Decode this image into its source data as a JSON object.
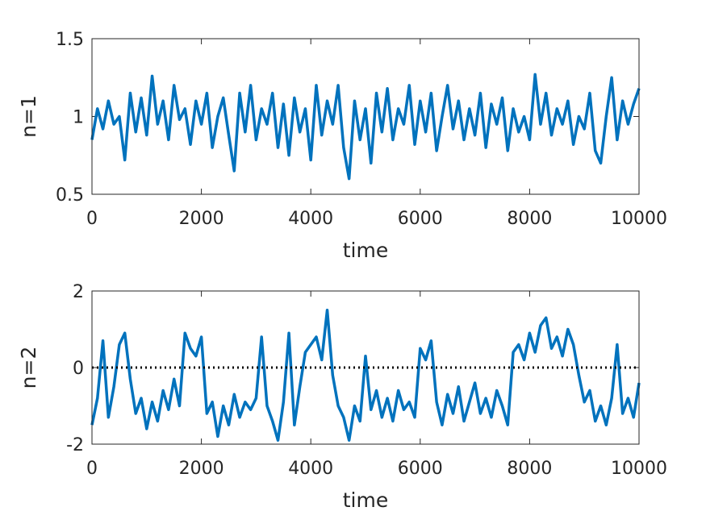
{
  "chart_data": [
    {
      "type": "line",
      "ylabel": "n=1",
      "xlabel": "time",
      "x": [
        0,
        100,
        200,
        300,
        400,
        500,
        600,
        700,
        800,
        900,
        1000,
        1100,
        1200,
        1300,
        1400,
        1500,
        1600,
        1700,
        1800,
        1900,
        2000,
        2100,
        2200,
        2300,
        2400,
        2500,
        2600,
        2700,
        2800,
        2900,
        3000,
        3100,
        3200,
        3300,
        3400,
        3500,
        3600,
        3700,
        3800,
        3900,
        4000,
        4100,
        4200,
        4300,
        4400,
        4500,
        4600,
        4700,
        4800,
        4900,
        5000,
        5100,
        5200,
        5300,
        5400,
        5500,
        5600,
        5700,
        5800,
        5900,
        6000,
        6100,
        6200,
        6300,
        6400,
        6500,
        6600,
        6700,
        6800,
        6900,
        7000,
        7100,
        7200,
        7300,
        7400,
        7500,
        7600,
        7700,
        7800,
        7900,
        8000,
        8100,
        8200,
        8300,
        8400,
        8500,
        8600,
        8700,
        8800,
        8900,
        9000,
        9100,
        9200,
        9300,
        9400,
        9500,
        9600,
        9700,
        9800,
        9900,
        10000
      ],
      "series": [
        {
          "color": "#0072bd",
          "values": [
            0.85,
            1.05,
            0.92,
            1.1,
            0.95,
            1.0,
            0.72,
            1.15,
            0.9,
            1.12,
            0.88,
            1.26,
            0.95,
            1.1,
            0.85,
            1.2,
            0.98,
            1.05,
            0.82,
            1.1,
            0.95,
            1.15,
            0.8,
            1.0,
            1.12,
            0.88,
            0.65,
            1.15,
            0.9,
            1.2,
            0.85,
            1.05,
            0.95,
            1.15,
            0.8,
            1.08,
            0.75,
            1.12,
            0.9,
            1.05,
            0.72,
            1.2,
            0.88,
            1.1,
            0.95,
            1.2,
            0.8,
            0.6,
            1.1,
            0.85,
            1.05,
            0.7,
            1.15,
            0.9,
            1.18,
            0.85,
            1.05,
            0.95,
            1.2,
            0.82,
            1.1,
            0.9,
            1.15,
            0.78,
            1.0,
            1.2,
            0.92,
            1.1,
            0.85,
            1.05,
            0.88,
            1.15,
            0.8,
            1.08,
            0.95,
            1.12,
            0.78,
            1.05,
            0.9,
            1.0,
            0.85,
            1.27,
            0.95,
            1.15,
            0.88,
            1.05,
            0.95,
            1.1,
            0.82,
            1.0,
            0.92,
            1.15,
            0.78,
            0.7,
            1.0,
            1.25,
            0.85,
            1.1,
            0.95,
            1.08,
            1.18
          ]
        }
      ],
      "xlim": [
        0,
        10000
      ],
      "xticks": [
        0,
        2000,
        4000,
        6000,
        8000,
        10000
      ],
      "ylim": [
        0.5,
        1.5
      ],
      "yticks": [
        0.5,
        1,
        1.5
      ]
    },
    {
      "type": "line",
      "ylabel": "n=2",
      "xlabel": "time",
      "x": [
        0,
        100,
        200,
        300,
        400,
        500,
        600,
        700,
        800,
        900,
        1000,
        1100,
        1200,
        1300,
        1400,
        1500,
        1600,
        1700,
        1800,
        1900,
        2000,
        2100,
        2200,
        2300,
        2400,
        2500,
        2600,
        2700,
        2800,
        2900,
        3000,
        3100,
        3200,
        3300,
        3400,
        3500,
        3600,
        3700,
        3800,
        3900,
        4000,
        4100,
        4200,
        4300,
        4400,
        4500,
        4600,
        4700,
        4800,
        4900,
        5000,
        5100,
        5200,
        5300,
        5400,
        5500,
        5600,
        5700,
        5800,
        5900,
        6000,
        6100,
        6200,
        6300,
        6400,
        6500,
        6600,
        6700,
        6800,
        6900,
        7000,
        7100,
        7200,
        7300,
        7400,
        7500,
        7600,
        7700,
        7800,
        7900,
        8000,
        8100,
        8200,
        8300,
        8400,
        8500,
        8600,
        8700,
        8800,
        8900,
        9000,
        9100,
        9200,
        9300,
        9400,
        9500,
        9600,
        9700,
        9800,
        9900,
        10000
      ],
      "series": [
        {
          "color": "#0072bd",
          "values": [
            -1.5,
            -0.8,
            0.7,
            -1.3,
            -0.5,
            0.6,
            0.9,
            -0.3,
            -1.2,
            -0.8,
            -1.6,
            -0.9,
            -1.4,
            -0.6,
            -1.1,
            -0.3,
            -1.0,
            0.9,
            0.5,
            0.3,
            0.8,
            -1.2,
            -0.9,
            -1.8,
            -1.0,
            -1.5,
            -0.7,
            -1.3,
            -0.9,
            -1.1,
            -0.8,
            0.8,
            -1.0,
            -1.4,
            -1.9,
            -0.9,
            0.9,
            -1.5,
            -0.5,
            0.4,
            0.6,
            0.8,
            0.2,
            1.5,
            -0.2,
            -1.0,
            -1.3,
            -1.9,
            -1.0,
            -1.4,
            0.3,
            -1.1,
            -0.6,
            -1.3,
            -0.8,
            -1.4,
            -0.6,
            -1.1,
            -0.9,
            -1.3,
            0.5,
            0.2,
            0.7,
            -0.9,
            -1.5,
            -0.7,
            -1.2,
            -0.5,
            -1.4,
            -0.9,
            -0.4,
            -1.2,
            -0.8,
            -1.3,
            -0.6,
            -1.0,
            -1.5,
            0.4,
            0.6,
            0.2,
            0.9,
            0.4,
            1.1,
            1.3,
            0.5,
            0.8,
            0.3,
            1.0,
            0.6,
            -0.2,
            -0.9,
            -0.6,
            -1.4,
            -1.0,
            -1.5,
            -0.8,
            0.6,
            -1.2,
            -0.8,
            -1.3,
            -0.4
          ]
        }
      ],
      "hline": 0,
      "xlim": [
        0,
        10000
      ],
      "xticks": [
        0,
        2000,
        4000,
        6000,
        8000,
        10000
      ],
      "ylim": [
        -2,
        2
      ],
      "yticks": [
        -2,
        0,
        2
      ]
    }
  ]
}
